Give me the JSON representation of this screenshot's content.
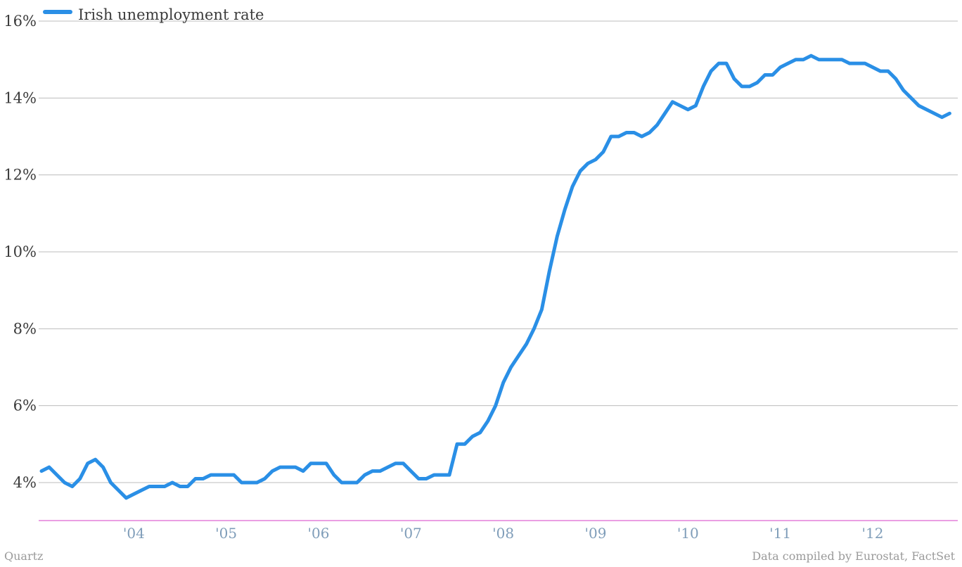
{
  "chart_data": {
    "type": "line",
    "title": "",
    "xlabel": "",
    "ylabel": "",
    "ylim": [
      3,
      16
    ],
    "grid": true,
    "legend": {
      "placement": "top-left",
      "entries": [
        "Irish unemployment rate"
      ]
    },
    "y_ticks": [
      {
        "value": 4,
        "label": "4%"
      },
      {
        "value": 6,
        "label": "6%"
      },
      {
        "value": 8,
        "label": "8%"
      },
      {
        "value": 10,
        "label": "10%"
      },
      {
        "value": 12,
        "label": "12%"
      },
      {
        "value": 14,
        "label": "14%"
      },
      {
        "value": 16,
        "label": "16%"
      }
    ],
    "x_ticks": [
      {
        "value": 2004,
        "label": "'04"
      },
      {
        "value": 2005,
        "label": "'05"
      },
      {
        "value": 2006,
        "label": "'06"
      },
      {
        "value": 2007,
        "label": "'07"
      },
      {
        "value": 2008,
        "label": "'08"
      },
      {
        "value": 2009,
        "label": "'09"
      },
      {
        "value": 2010,
        "label": "'10"
      },
      {
        "value": 2011,
        "label": "'11"
      },
      {
        "value": 2012,
        "label": "'12"
      }
    ],
    "series": [
      {
        "name": "Irish unemployment rate",
        "color": "#2a8fe6",
        "start": "2003-01",
        "frequency": "monthly",
        "values": [
          4.3,
          4.4,
          4.2,
          4.0,
          3.9,
          4.1,
          4.5,
          4.6,
          4.4,
          4.0,
          3.8,
          3.6,
          3.7,
          3.8,
          3.9,
          3.9,
          3.9,
          4.0,
          3.9,
          3.9,
          4.1,
          4.1,
          4.2,
          4.2,
          4.2,
          4.2,
          4.0,
          4.0,
          4.0,
          4.1,
          4.3,
          4.4,
          4.4,
          4.4,
          4.3,
          4.5,
          4.5,
          4.5,
          4.2,
          4.0,
          4.0,
          4.0,
          4.2,
          4.3,
          4.3,
          4.4,
          4.5,
          4.5,
          4.3,
          4.1,
          4.1,
          4.2,
          4.2,
          4.2,
          5.0,
          5.0,
          5.2,
          5.3,
          5.6,
          6.0,
          6.6,
          7.0,
          7.3,
          7.6,
          8.0,
          8.5,
          9.5,
          10.4,
          11.1,
          11.7,
          12.1,
          12.3,
          12.4,
          12.6,
          13.0,
          13.0,
          13.1,
          13.1,
          13.0,
          13.1,
          13.3,
          13.6,
          13.9,
          13.8,
          13.7,
          13.8,
          14.3,
          14.7,
          14.9,
          14.9,
          14.5,
          14.3,
          14.3,
          14.4,
          14.6,
          14.6,
          14.8,
          14.9,
          15.0,
          15.0,
          15.1,
          15.0,
          15.0,
          15.0,
          15.0,
          14.9,
          14.9,
          14.9,
          14.8,
          14.7,
          14.7,
          14.5,
          14.2,
          14.0,
          13.8,
          13.7,
          13.6,
          13.5,
          13.6
        ]
      }
    ]
  },
  "footer": {
    "source_left": "Quartz",
    "source_right": "Data compiled by Eurostat, FactSet"
  }
}
